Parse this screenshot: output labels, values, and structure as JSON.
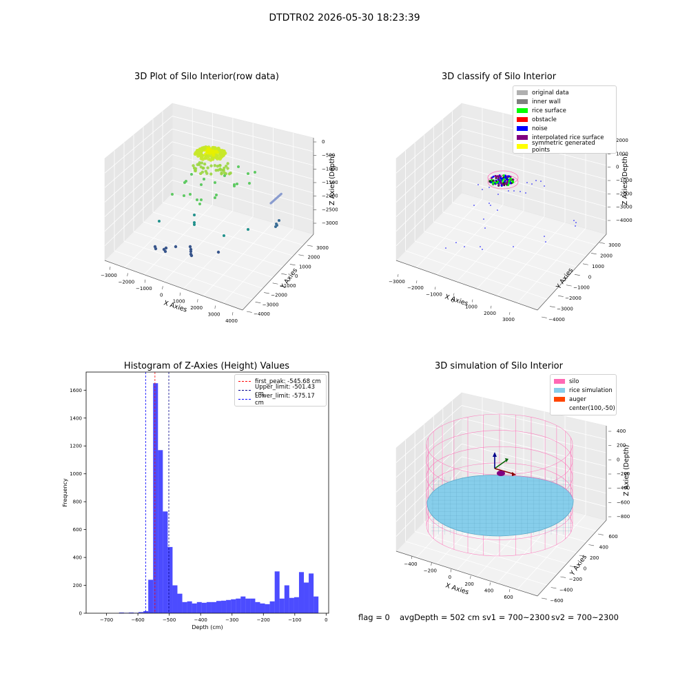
{
  "suptitle": "DTDTR02 2026-05-30 18:23:39",
  "panels": {
    "raw": {
      "title": "3D Plot of Silo Interior(row data)",
      "xlabel": "X Axies",
      "ylabel": "Y Axies",
      "zlabel": "Z Axies (Depth)",
      "xticks": [
        "−3000",
        "−2000",
        "−1000",
        "0",
        "1000",
        "2000",
        "3000",
        "4000"
      ],
      "yticks": [
        "3000",
        "2000",
        "1000",
        "0",
        "−1000",
        "−2000",
        "−3000",
        "−4000"
      ],
      "zticks": [
        "0",
        "−500",
        "−1000",
        "−1500",
        "−2000",
        "−2500",
        "−3000"
      ]
    },
    "classify": {
      "title": "3D classify of Silo Interior",
      "xlabel": "X Axies",
      "ylabel": "Y Axies",
      "zlabel": "Z Axies (Depth)",
      "xticks": [
        "−3000",
        "−2000",
        "−1000",
        "0",
        "1000",
        "2000",
        "3000"
      ],
      "yticks": [
        "3000",
        "2000",
        "1000",
        "0",
        "−1000",
        "−2000",
        "−3000",
        "−4000"
      ],
      "zticks": [
        "2000",
        "1000",
        "0",
        "−1000",
        "−2000",
        "−3000",
        "−4000"
      ],
      "legend": [
        {
          "label": "original data",
          "color": "#b0b0b0"
        },
        {
          "label": "inner wall",
          "color": "#808080"
        },
        {
          "label": "rice surface",
          "color": "#00ff00"
        },
        {
          "label": "obstacle",
          "color": "#ff0000"
        },
        {
          "label": "noise",
          "color": "#0000ff"
        },
        {
          "label": "interpolated rice surface",
          "color": "#800080"
        },
        {
          "label": "symmetric generated points",
          "color": "#ffff00"
        }
      ]
    },
    "histogram": {
      "title": "Histogram of Z-Axies (Height) Values",
      "legend": [
        {
          "label": "first_peak: -545.68 cm",
          "color": "#ff0000"
        },
        {
          "label": "Upper_limit: -501.43 cm",
          "color": "#00008b"
        },
        {
          "label": "Lower_limit: -575.17 cm",
          "color": "#0000ff"
        }
      ]
    },
    "simulation": {
      "title": "3D simulation of Silo Interior",
      "xlabel": "X Axies",
      "ylabel": "Y Axies",
      "zlabel": "Z Axies (Depth)",
      "xticks": [
        "−400",
        "−200",
        "0",
        "200",
        "400",
        "600"
      ],
      "yticks": [
        "600",
        "400",
        "200",
        "0",
        "−200",
        "−400",
        "−600"
      ],
      "zticks": [
        "400",
        "200",
        "0",
        "−200",
        "−400",
        "−600",
        "−800"
      ],
      "legend": [
        {
          "label": "silo",
          "color": "#ff69b4"
        },
        {
          "label": "rice simulation",
          "color": "#87ceeb"
        },
        {
          "label": "auger",
          "color": "#ff4500"
        },
        {
          "label": "center(100,-50)",
          "color": ""
        }
      ]
    }
  },
  "status": {
    "flag": "flag = 0",
    "avg_depth": "avgDepth = 502 cm",
    "sv1": "sv1 = 700~2300",
    "sv2": "sv2 = 700~2300"
  },
  "chart_data": [
    {
      "type": "bar",
      "title": "Histogram of Z-Axies (Height) Values",
      "xlabel": "Depth (cm)",
      "ylabel": "Frequency",
      "xlim": [
        -765,
        8
      ],
      "ylim": [
        0,
        1730
      ],
      "xticks": [
        -700,
        -600,
        -500,
        -400,
        -300,
        -200,
        -100,
        0
      ],
      "yticks": [
        0,
        200,
        400,
        600,
        800,
        1000,
        1200,
        1400,
        1600
      ],
      "bin_width": 15.5,
      "bin_left": [
        -660,
        -644.5,
        -629,
        -613.5,
        -598,
        -582.5,
        -567,
        -551.5,
        -536,
        -520.5,
        -505,
        -489.5,
        -474,
        -458.5,
        -443,
        -427.5,
        -412,
        -396.5,
        -381,
        -365.5,
        -350,
        -334.5,
        -319,
        -303.5,
        -288,
        -272.5,
        -257,
        -241.5,
        -226,
        -210.5,
        -195,
        -179.5,
        -164,
        -148.5,
        -133,
        -117.5,
        -102,
        -86.5,
        -71,
        -55.5,
        -40,
        -24.5,
        -9
      ],
      "values": [
        5,
        3,
        5,
        3,
        8,
        15,
        240,
        1650,
        1170,
        730,
        475,
        200,
        140,
        80,
        85,
        70,
        80,
        75,
        80,
        80,
        88,
        90,
        95,
        100,
        105,
        120,
        105,
        105,
        80,
        70,
        65,
        85,
        300,
        105,
        200,
        110,
        115,
        295,
        220,
        285,
        120,
        0,
        0
      ],
      "bar_color": "#0000ff",
      "vlines": [
        {
          "name": "first_peak",
          "x": -545.68,
          "color": "#ff0000"
        },
        {
          "name": "Upper_limit",
          "x": -501.43,
          "color": "#00008b"
        },
        {
          "name": "Lower_limit",
          "x": -575.17,
          "color": "#0000ff"
        }
      ],
      "legend_position": "upper right"
    }
  ]
}
